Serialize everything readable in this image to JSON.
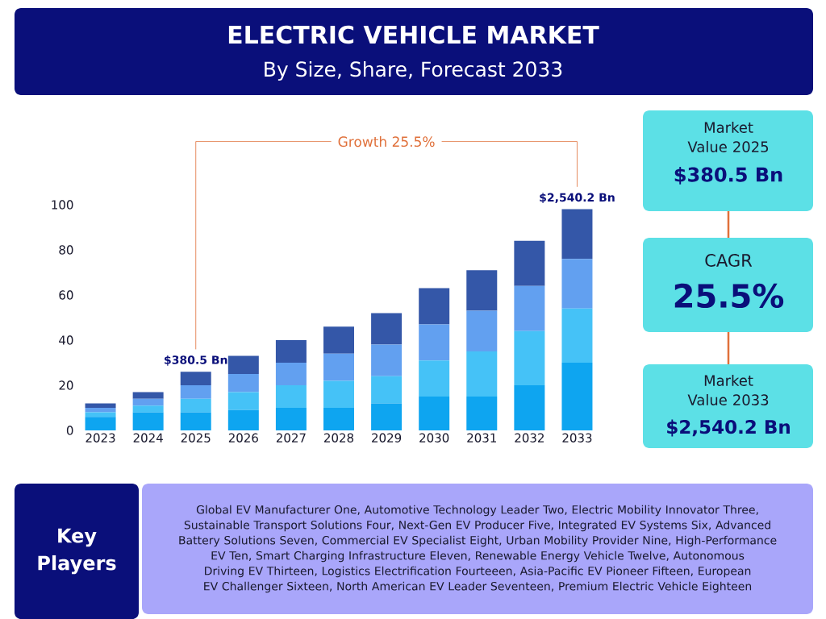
{
  "chart_data": {
    "type": "bar",
    "title": "ELECTRIC VEHICLE MARKET",
    "subtitle": "By Size, Share, Forecast 2033",
    "categories": [
      "2023",
      "2024",
      "2025",
      "2026",
      "2027",
      "2028",
      "2029",
      "2030",
      "2031",
      "2032",
      "2033"
    ],
    "stacked": true,
    "series": [
      {
        "color": "#0ea5f0",
        "values": [
          6,
          8,
          8,
          9,
          10,
          10,
          12,
          15,
          15,
          20,
          30
        ]
      },
      {
        "color": "#45c2f7",
        "values": [
          2,
          3,
          6,
          8,
          10,
          12,
          12,
          16,
          20,
          24,
          24
        ]
      },
      {
        "color": "#62a0f0",
        "values": [
          2,
          3,
          6,
          8,
          10,
          12,
          14,
          16,
          18,
          20,
          22
        ]
      },
      {
        "color": "#3457a8",
        "values": [
          2,
          3,
          6,
          8,
          10,
          12,
          14,
          16,
          18,
          20,
          22
        ]
      }
    ],
    "ylim": [
      0,
      100
    ],
    "yticks": [
      0,
      20,
      40,
      60,
      80,
      100
    ],
    "annotations": [
      "Growth  25.5%",
      {
        "text": "$380.5 Bn",
        "x": "2025",
        "y": 26
      },
      {
        "text": "$2,540.2 Bn",
        "x": "2033",
        "y": 98
      },
      "Market Value 2025",
      "$380.5 Bn",
      "CAGR",
      "25.5%",
      "Market Value 2033",
      "$2,540.2 Bn",
      "Key Players",
      "Global EV Manufacturer One, Automotive Technology Leader Two, Electric Mobility Innovator Three, Sustainable Transport Solutions Four, Next-Gen EV Producer Five, Integrated EV Systems Six, Advanced Battery Solutions Seven, Commercial EV Specialist Eight, Urban Mobility Provider Nine, High-Performance EV Ten, Smart Charging Infrastructure Eleven, Renewable Energy Vehicle Twelve, Autonomous Driving EV Thirteen, Logistics Electrification Fourteeen, Asia-Pacific EV Pioneer Fifteen, European EV Challenger Sixteen, North American EV Leader Seventeen, Premium Electric Vehicle Eighteen"
    ]
  }
}
